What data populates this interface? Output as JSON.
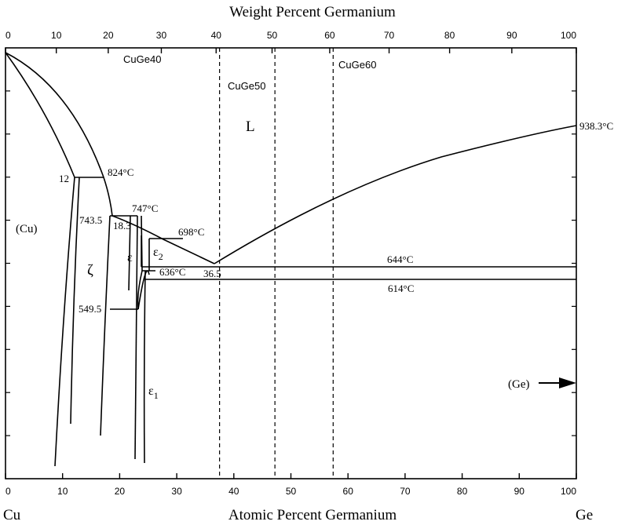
{
  "chart_data": {
    "type": "phase-diagram",
    "title_top": "Weight Percent Germanium",
    "xlabel": "Atomic Percent Germanium",
    "x_left_label": "Cu",
    "x_right_label": "Ge",
    "xlim": [
      0,
      100
    ],
    "bottom_ticks": [
      "0",
      "10",
      "20",
      "30",
      "40",
      "50",
      "60",
      "70",
      "80",
      "90",
      "100"
    ],
    "top_ticks": [
      {
        "wt": 0,
        "at": 0,
        "label": "0"
      },
      {
        "wt": 10,
        "at": 8.9,
        "label": "10"
      },
      {
        "wt": 20,
        "at": 18.0,
        "label": "20"
      },
      {
        "wt": 30,
        "at": 27.3,
        "label": "30"
      },
      {
        "wt": 40,
        "at": 36.9,
        "label": "40"
      },
      {
        "wt": 50,
        "at": 46.7,
        "label": "50"
      },
      {
        "wt": 60,
        "at": 56.8,
        "label": "60"
      },
      {
        "wt": 70,
        "at": 67.2,
        "label": "70"
      },
      {
        "wt": 80,
        "at": 77.8,
        "label": "80"
      },
      {
        "wt": 90,
        "at": 88.7,
        "label": "90"
      },
      {
        "wt": 100,
        "at": 100,
        "label": "100"
      }
    ],
    "reference_lines": [
      {
        "name": "CuGe40",
        "at": 37.5
      },
      {
        "name": "CuGe50",
        "at": 47.2
      },
      {
        "name": "CuGe60",
        "at": 57.4
      }
    ],
    "isotherms": [
      {
        "label": "824°C",
        "from": 12,
        "to": 17.5
      },
      {
        "label": "747°C",
        "from": 18.3,
        "to": 23.5
      },
      {
        "label": "698°C",
        "from": 27.5,
        "to": 33.0
      },
      {
        "label": "644°C",
        "from": 24.5,
        "to": 100
      },
      {
        "label": "636°C",
        "from": 24.0,
        "to": 27.0
      },
      {
        "label": "614°C",
        "from": 25.0,
        "to": 100
      },
      {
        "label": "549.5",
        "from": 18.0,
        "to": 23.3
      }
    ],
    "composition_labels": {
      "c1": "12",
      "c2": "743.5",
      "c3": "18.3",
      "c4": "36.5"
    },
    "melting_point_ge": "938.3°C",
    "phases": {
      "liquid": "L",
      "cu": "(Cu)",
      "zeta": "ζ",
      "epsilon": "ε",
      "epsilon1_base": "ε",
      "epsilon1_sub": "1",
      "epsilon2_base": "ε",
      "epsilon2_sub": "2",
      "ge": "(Ge)"
    }
  }
}
